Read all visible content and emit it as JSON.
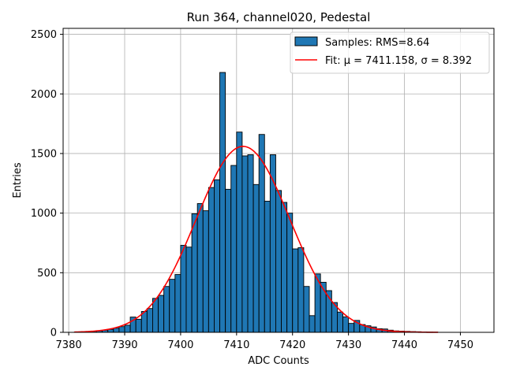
{
  "chart_data": {
    "type": "bar",
    "title": "Run 364, channel020, Pedestal",
    "xlabel": "ADC Counts",
    "ylabel": "Entries",
    "xlim": [
      7379,
      7456
    ],
    "ylim": [
      0,
      2550
    ],
    "xticks": [
      7380,
      7390,
      7400,
      7410,
      7420,
      7430,
      7440,
      7450
    ],
    "yticks": [
      0,
      500,
      1000,
      1500,
      2000,
      2500
    ],
    "grid": true,
    "legend_position": "top-right",
    "legend": {
      "histogram": "Samples: RMS=8.64",
      "fit": "Fit: μ = 7411.158, σ = 8.392"
    },
    "colors": {
      "bars": "#1f77b4",
      "bar_edge": "#000000",
      "fit": "#ff0000",
      "grid": "#b0b0b0"
    },
    "bin_width": 1,
    "series": [
      {
        "name": "Samples: RMS=8.64",
        "bin_starts": [
          7381,
          7382,
          7383,
          7384,
          7385,
          7386,
          7387,
          7388,
          7389,
          7390,
          7391,
          7392,
          7393,
          7394,
          7395,
          7396,
          7397,
          7398,
          7399,
          7400,
          7401,
          7402,
          7403,
          7404,
          7405,
          7406,
          7407,
          7408,
          7409,
          7410,
          7411,
          7412,
          7413,
          7414,
          7415,
          7416,
          7417,
          7418,
          7419,
          7420,
          7421,
          7422,
          7423,
          7424,
          7425,
          7426,
          7427,
          7428,
          7429,
          7430,
          7431,
          7432,
          7433,
          7434,
          7435,
          7436,
          7437,
          7438,
          7439,
          7440,
          7441,
          7442,
          7443,
          7444,
          7445
        ],
        "values": [
          2,
          3,
          5,
          8,
          12,
          18,
          25,
          35,
          48,
          60,
          128,
          110,
          175,
          200,
          285,
          310,
          385,
          445,
          485,
          730,
          715,
          995,
          1080,
          1020,
          1215,
          1280,
          2180,
          1200,
          1400,
          1680,
          1480,
          1490,
          1240,
          1660,
          1100,
          1490,
          1190,
          1090,
          1000,
          700,
          710,
          385,
          140,
          490,
          420,
          350,
          250,
          170,
          130,
          75,
          100,
          65,
          55,
          45,
          30,
          28,
          18,
          12,
          10,
          8,
          6,
          5,
          3,
          2,
          1
        ]
      },
      {
        "name": "Fit: μ = 7411.158, σ = 8.392",
        "type": "gaussian",
        "mu": 7411.158,
        "sigma": 8.392,
        "amplitude": 1560,
        "x_range": [
          7381,
          7446
        ]
      }
    ]
  }
}
